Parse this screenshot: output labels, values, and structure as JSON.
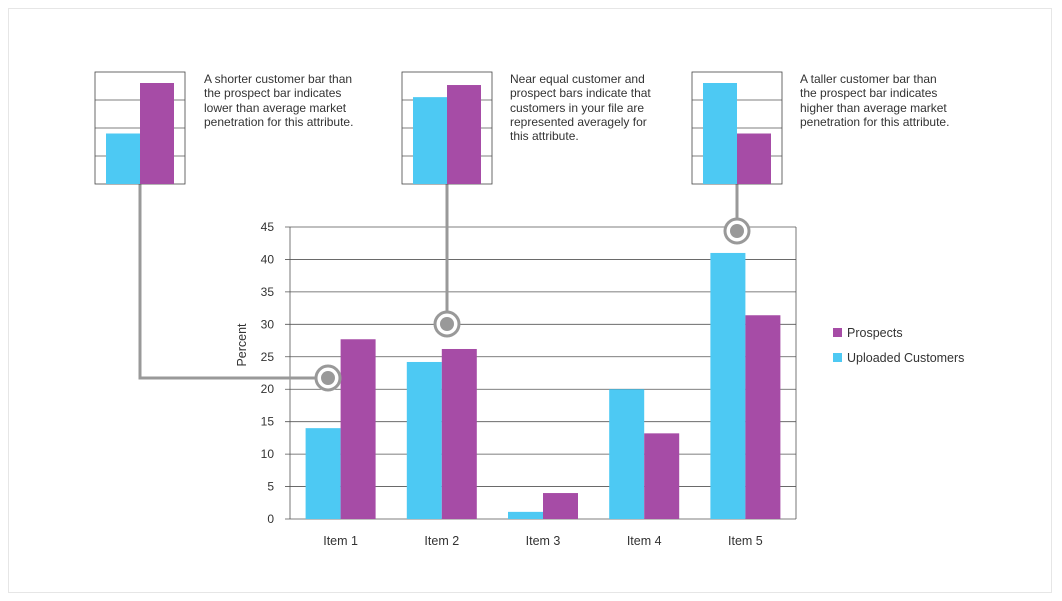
{
  "colors": {
    "prospects": "#a64ca6",
    "customers": "#4dc9f3",
    "connector": "#999999",
    "grid": "#555555"
  },
  "chart_data": {
    "type": "bar",
    "title": "",
    "xlabel": "",
    "ylabel": "Percent",
    "ylim": [
      0,
      45
    ],
    "yticks": [
      0,
      5,
      10,
      15,
      20,
      25,
      30,
      35,
      40,
      45
    ],
    "categories": [
      "Item 1",
      "Item 2",
      "Item 3",
      "Item 4",
      "Item 5"
    ],
    "series": [
      {
        "name": "Uploaded Customers",
        "values": [
          14,
          24.2,
          1.1,
          20,
          41
        ]
      },
      {
        "name": "Prospects",
        "values": [
          27.7,
          26.2,
          4,
          13.2,
          31.4
        ]
      }
    ],
    "grid": true,
    "legend": {
      "placement": "right",
      "entries": [
        "Prospects",
        "Uploaded Customers"
      ]
    }
  },
  "callouts": [
    {
      "text": "A shorter customer bar than the prospect bar indicates lower than average market penetration for this attribute.",
      "example": {
        "customer": 0.5,
        "prospect": 1.0
      },
      "category": "Item 1"
    },
    {
      "text": "Near equal customer and prospect bars indicate that customers in your file are represented averagely for this attribute.",
      "example": {
        "customer": 0.86,
        "prospect": 0.98
      },
      "category": "Item 2"
    },
    {
      "text": "A taller customer bar than the prospect bar indicates higher than average market penetration for this attribute.",
      "example": {
        "customer": 1.0,
        "prospect": 0.5
      },
      "category": "Item 5"
    }
  ]
}
